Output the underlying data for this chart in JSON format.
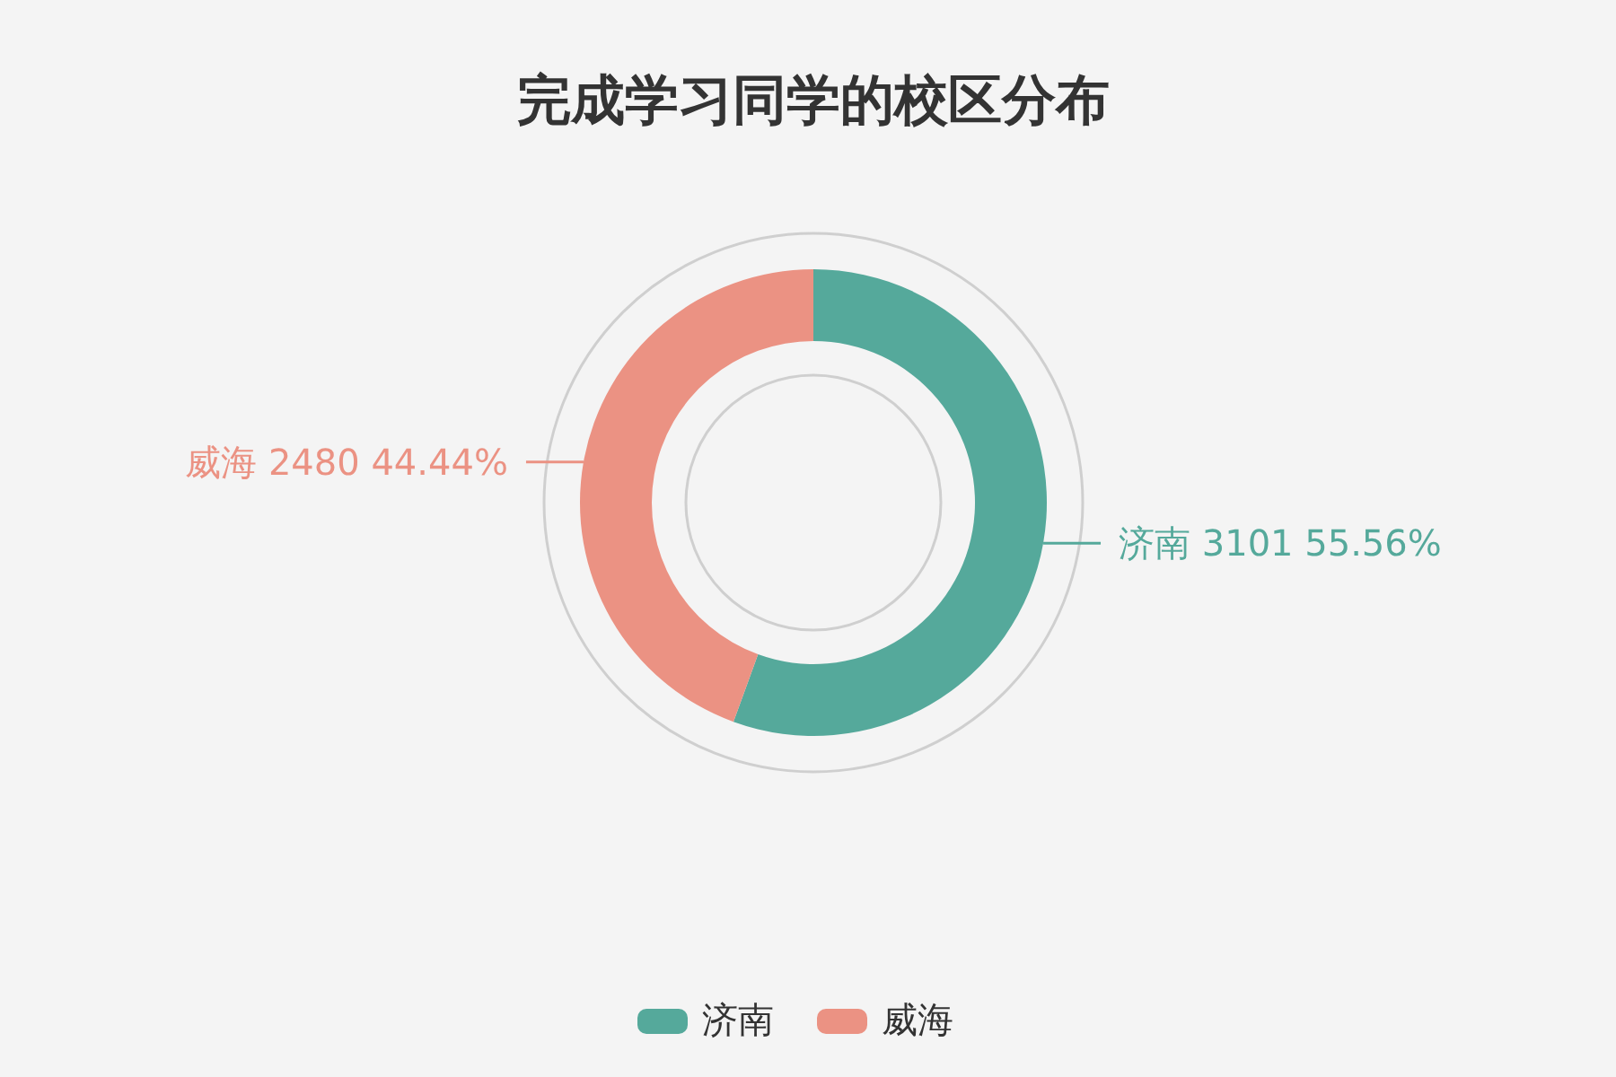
{
  "chart_data": {
    "type": "donut",
    "title": "完成学习同学的校区分布",
    "categories": [
      "济南",
      "威海"
    ],
    "values": [
      3101,
      2480
    ],
    "colors": [
      "#55a99b",
      "#eb9283"
    ],
    "value_labels": [
      "济南 3101 55.56%",
      "威海 2480 44.44%"
    ],
    "legend": "bottom"
  }
}
